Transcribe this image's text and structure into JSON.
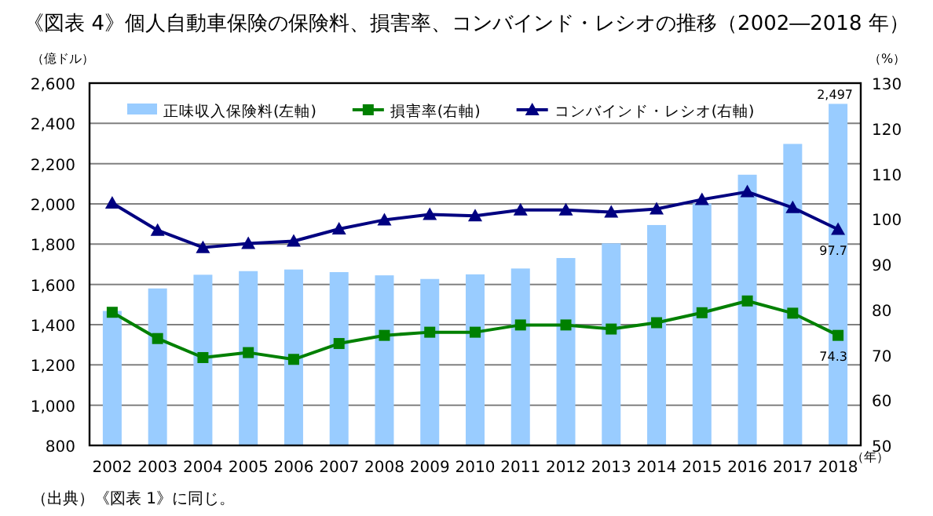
{
  "chart_data": {
    "type": "bar",
    "title": "《図表 4》個人自動車保険の保険料、損害率、コンバインド・レシオの推移（2002―2018 年）",
    "ylabel": "（億ドル）",
    "y2label": "（%）",
    "xlabel": "（年）",
    "annotations": [
      "（出典）《図表 1》に同じ。"
    ],
    "categories": [
      "2002",
      "2003",
      "2004",
      "2005",
      "2006",
      "2007",
      "2008",
      "2009",
      "2010",
      "2011",
      "2012",
      "2013",
      "2014",
      "2015",
      "2016",
      "2017",
      "2018"
    ],
    "series": [
      {
        "name": "正味収入保険料(左軸)",
        "color": "#99ccff",
        "values": [
          1468,
          1580,
          1648,
          1666,
          1674,
          1661,
          1645,
          1627,
          1650,
          1679,
          1731,
          1804,
          1895,
          2002,
          2145,
          2298,
          2497
        ],
        "value_labels": [
          null,
          null,
          null,
          null,
          null,
          null,
          null,
          null,
          null,
          null,
          null,
          null,
          null,
          null,
          null,
          null,
          "2,497"
        ]
      },
      {
        "name": "損害率(右軸)",
        "type": "line",
        "axis": "y2",
        "marker": "square",
        "color": "#008000",
        "values": [
          79.4,
          73.6,
          69.4,
          70.5,
          69.0,
          72.5,
          74.3,
          75.0,
          75.0,
          76.6,
          76.6,
          75.7,
          77.1,
          79.3,
          81.9,
          79.2,
          74.3
        ],
        "value_labels": [
          null,
          null,
          null,
          null,
          null,
          null,
          null,
          null,
          null,
          null,
          null,
          null,
          null,
          null,
          null,
          null,
          "74.3"
        ]
      },
      {
        "name": "コンバインド・レシオ(右軸)",
        "type": "line",
        "axis": "y2",
        "marker": "triangle",
        "color": "#000080",
        "values": [
          103.5,
          97.5,
          93.7,
          94.6,
          95.1,
          97.8,
          99.8,
          101.0,
          100.7,
          102.0,
          102.0,
          101.5,
          102.2,
          104.3,
          106.0,
          102.5,
          97.7
        ],
        "value_labels": [
          null,
          null,
          null,
          null,
          null,
          null,
          null,
          null,
          null,
          null,
          null,
          null,
          null,
          null,
          null,
          null,
          "97.7"
        ]
      }
    ],
    "ylim": [
      800,
      2600
    ],
    "yticks": [
      {
        "value": 800,
        "label": "800"
      },
      {
        "value": 1000,
        "label": "1,000"
      },
      {
        "value": 1200,
        "label": "1,200"
      },
      {
        "value": 1400,
        "label": "1,400"
      },
      {
        "value": 1600,
        "label": "1,600"
      },
      {
        "value": 1800,
        "label": "1,800"
      },
      {
        "value": 2000,
        "label": "2,000"
      },
      {
        "value": 2200,
        "label": "2,200"
      },
      {
        "value": 2400,
        "label": "2,400"
      },
      {
        "value": 2600,
        "label": "2,600"
      }
    ],
    "y2lim": [
      50,
      130
    ],
    "y2ticks": [
      50,
      60,
      70,
      80,
      90,
      100,
      110,
      120,
      130
    ],
    "grid": "y",
    "legend": "top"
  }
}
